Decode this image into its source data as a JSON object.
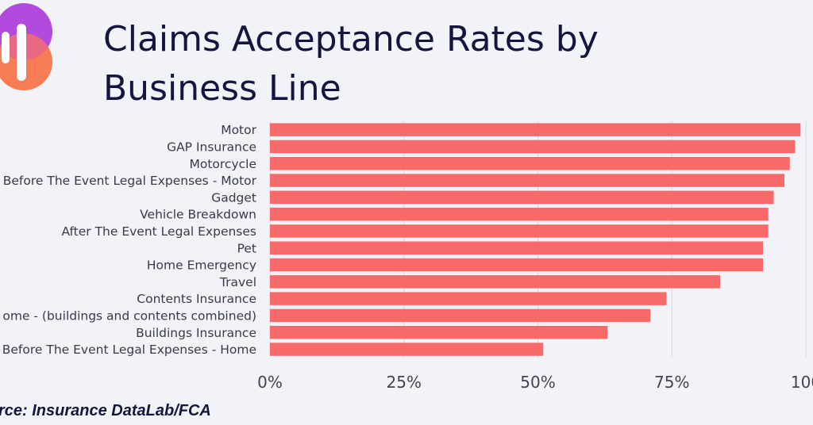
{
  "title_lines": [
    "Claims Acceptance Rates by",
    "Business Line"
  ],
  "source": "rce: Insurance DataLab/FCA",
  "logo": {
    "icon": "bar-chart-logo-icon",
    "colors": [
      "#a74be0",
      "#f5457e",
      "#fbbf24",
      "#ffffff"
    ]
  },
  "colors": {
    "background": "#f1f3f8",
    "bar": "#f86a6a",
    "grid": "#d5d8e0",
    "title": "#15163f"
  },
  "chart_data": {
    "type": "bar",
    "orientation": "horizontal",
    "categories": [
      "Motor",
      "GAP Insurance",
      "Motorcycle",
      "Before The Event Legal Expenses - Motor",
      "Gadget",
      "Vehicle Breakdown",
      "After The Event Legal Expenses",
      "Pet",
      "Home Emergency",
      "Travel",
      "Contents Insurance",
      "ome - (buildings and contents combined)",
      "Buildings Insurance",
      "Before The Event Legal Expenses - Home"
    ],
    "values": [
      99,
      98,
      97,
      96,
      94,
      93,
      93,
      92,
      92,
      84,
      74,
      71,
      63,
      51
    ],
    "unit": "%",
    "xlim": [
      0,
      100
    ],
    "xticks": [
      0,
      25,
      50,
      75,
      100
    ],
    "xtick_labels": [
      "0%",
      "25%",
      "50%",
      "75%",
      "100"
    ],
    "grid": true,
    "legend": "none"
  }
}
